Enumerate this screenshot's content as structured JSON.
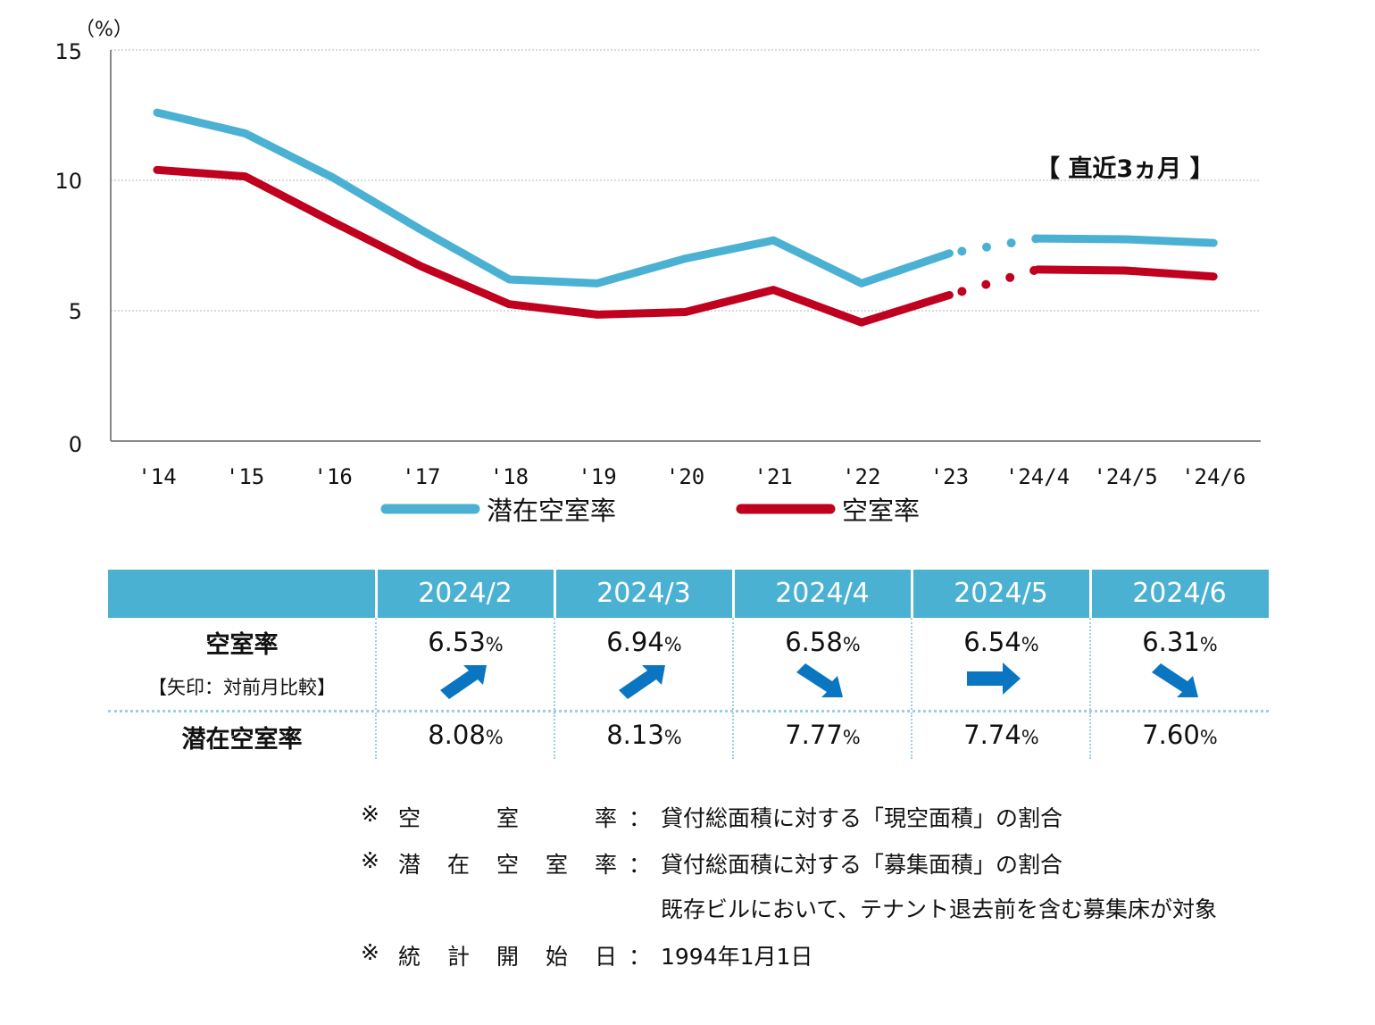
{
  "chart_data": {
    "type": "line",
    "unit_label": "（%）",
    "yticks": [
      "0",
      "5",
      "10",
      "15"
    ],
    "ylim": [
      0,
      15
    ],
    "categories": [
      "'14",
      "'15",
      "'16",
      "'17",
      "'18",
      "'19",
      "'20",
      "'21",
      "'22",
      "'23",
      "'24/4",
      "'24/5",
      "'24/6"
    ],
    "series": [
      {
        "name": "潜在空室率",
        "color": "#4bb1d3",
        "values": [
          12.6,
          11.8,
          10.1,
          8.1,
          6.2,
          6.05,
          7.0,
          7.7,
          6.05,
          7.2,
          7.77,
          7.74,
          7.6
        ]
      },
      {
        "name": "空室率",
        "color": "#c0001f",
        "values": [
          10.4,
          10.15,
          8.4,
          6.7,
          5.25,
          4.85,
          4.95,
          5.8,
          4.55,
          5.6,
          6.58,
          6.54,
          6.31
        ]
      }
    ],
    "annotation": "【 直近3ヵ月 】",
    "grid": true
  },
  "table": {
    "months": [
      "2024/2",
      "2024/3",
      "2024/4",
      "2024/5",
      "2024/6"
    ],
    "vacancy_label": "空室率",
    "arrow_label": "【矢印：対前月比較】",
    "potential_label": "潜在空室率",
    "vacancy": [
      "6.53",
      "6.94",
      "6.58",
      "6.54",
      "6.31"
    ],
    "potential": [
      "8.08",
      "8.13",
      "7.77",
      "7.74",
      "7.60"
    ],
    "pct": "%",
    "arrows": [
      "up",
      "up",
      "down",
      "flat",
      "down"
    ],
    "arrow_color": "#0a76c2"
  },
  "notes": {
    "mark": "※",
    "line1_label": [
      "空",
      "室",
      "率"
    ],
    "line1_text": "貸付総面積に対する「現空面積」の割合",
    "line2_label": [
      "潜",
      "在",
      "空",
      "室",
      "率"
    ],
    "line2_text": "貸付総面積に対する「募集面積」の割合",
    "line2_text2": "既存ビルにおいて、テナント退去前を含む募集床が対象",
    "line3_label": [
      "統",
      "計",
      "開",
      "始",
      "日"
    ],
    "line3_text": "1994年1月1日",
    "colon": "："
  }
}
